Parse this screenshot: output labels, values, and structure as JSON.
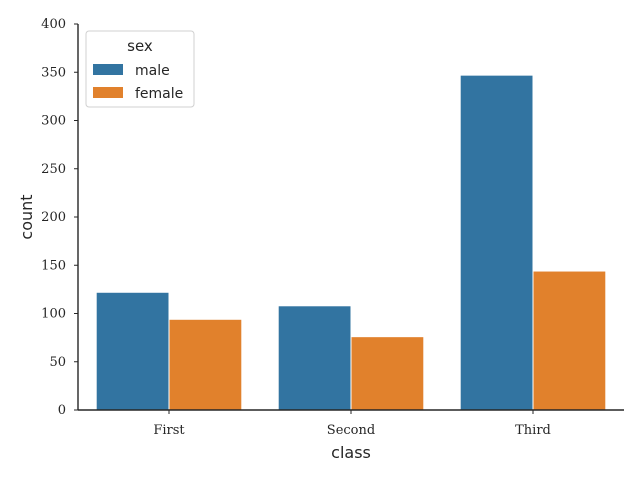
{
  "chart_data": {
    "type": "bar",
    "xlabel": "class",
    "ylabel": "count",
    "categories": [
      "First",
      "Second",
      "Third"
    ],
    "ylim": [
      0,
      400
    ],
    "yticks": [
      0,
      50,
      100,
      150,
      200,
      250,
      300,
      350,
      400
    ],
    "grid": false,
    "legend": {
      "title": "sex",
      "placement": "top-left"
    },
    "series": [
      {
        "name": "male",
        "color": "#3274a1",
        "values": [
          122,
          108,
          347
        ]
      },
      {
        "name": "female",
        "color": "#e1812c",
        "values": [
          94,
          76,
          144
        ]
      }
    ]
  }
}
